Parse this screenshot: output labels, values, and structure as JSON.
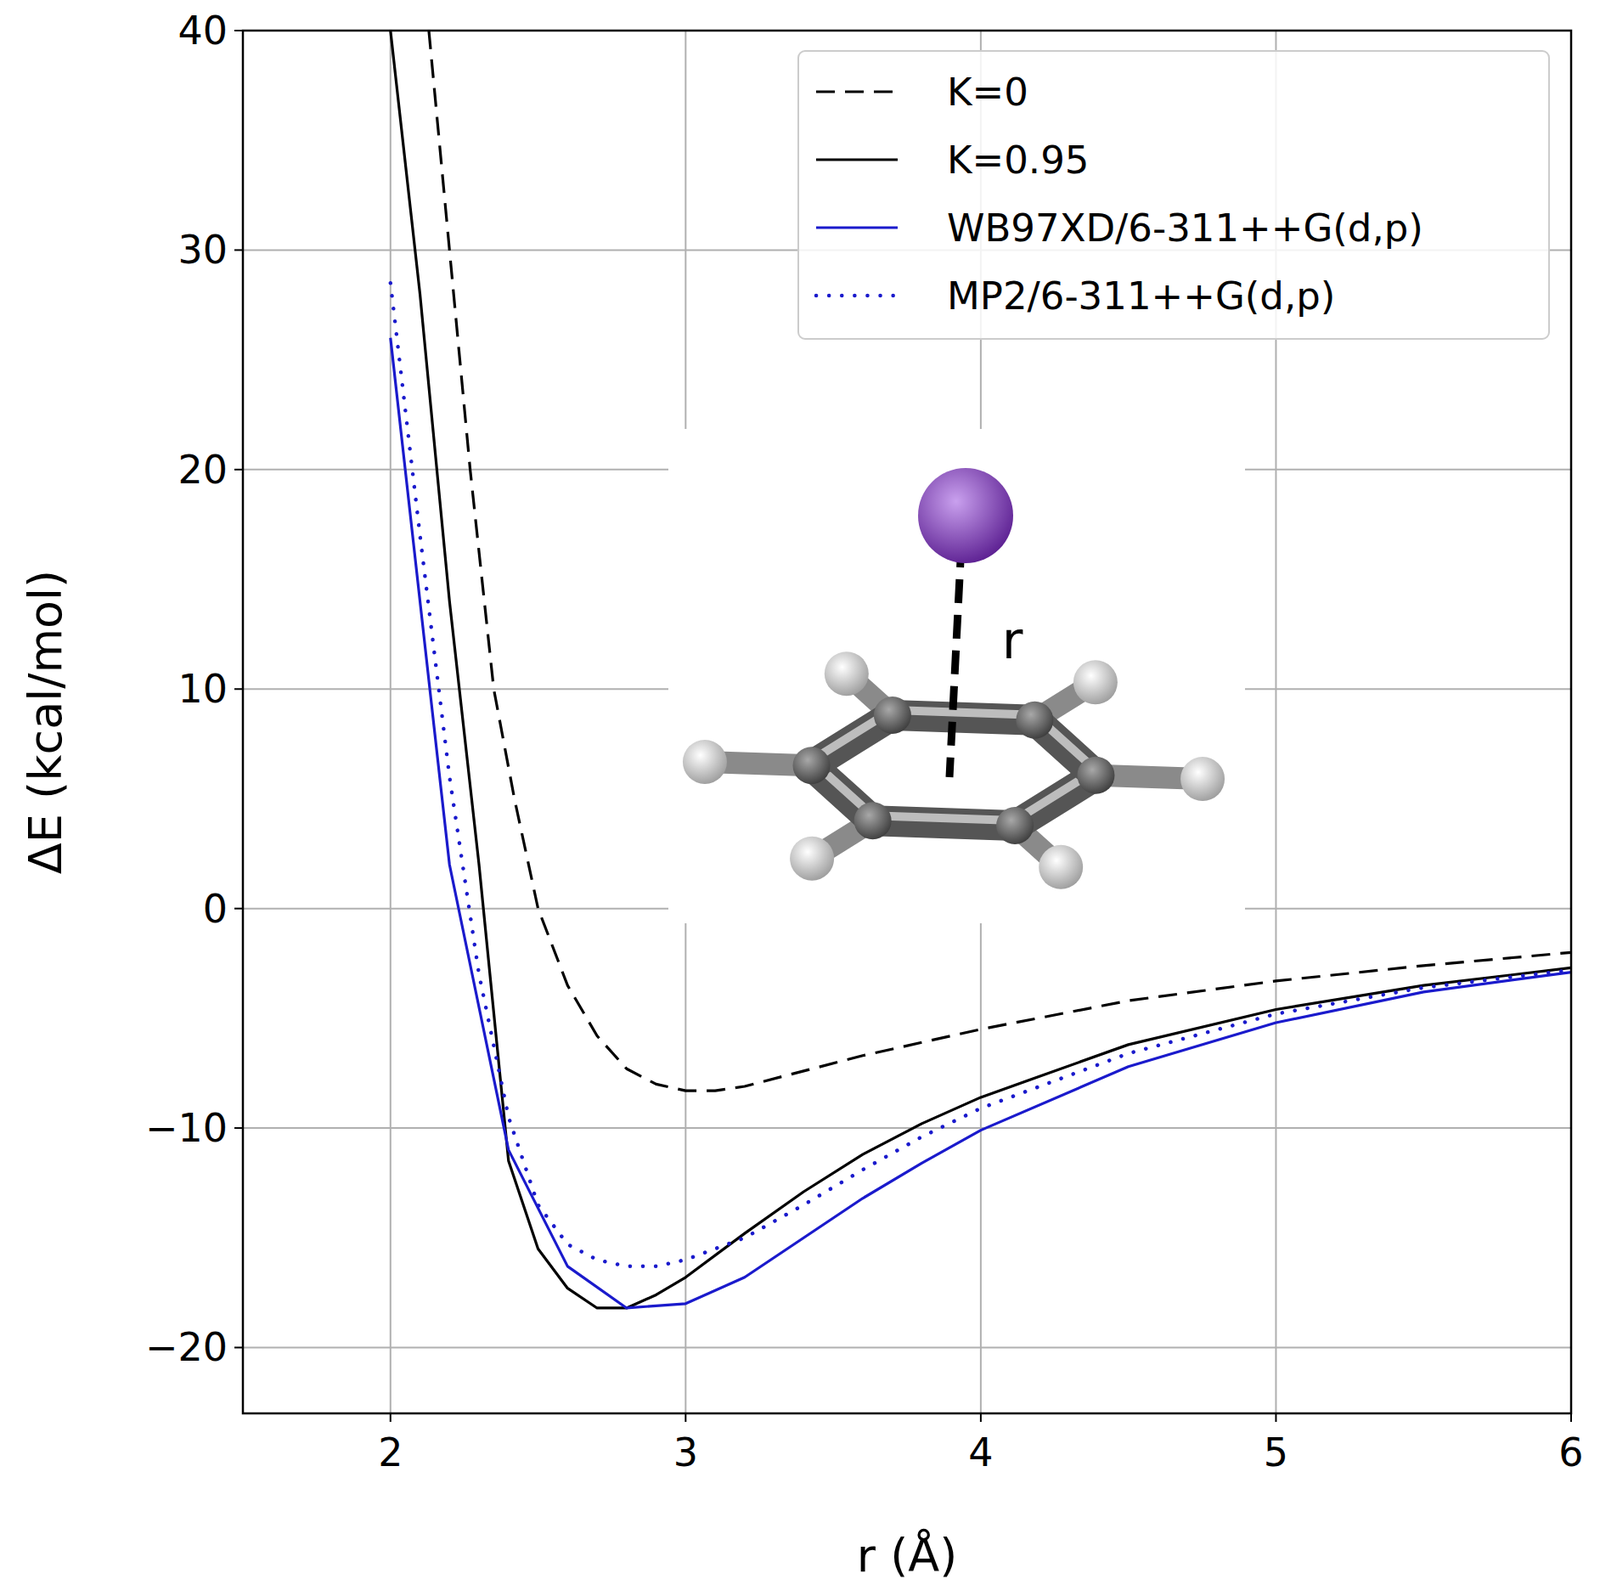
{
  "chart_data": {
    "type": "line",
    "x_label": "r (Å)",
    "y_label": "ΔE (kcal/mol)",
    "xlim": [
      1.5,
      6
    ],
    "ylim": [
      -23,
      40
    ],
    "xticks": [
      2,
      3,
      4,
      5,
      6
    ],
    "yticks": [
      {
        "value": -20,
        "label": "−20"
      },
      {
        "value": -10,
        "label": "−10"
      },
      0,
      10,
      20,
      30,
      40
    ],
    "grid": true,
    "legend": "upper right",
    "annotations": [
      "r"
    ],
    "series": [
      {
        "name": "K=0",
        "color": "#000000",
        "line_style": "dashed",
        "x": [
          2.13,
          2.2,
          2.27,
          2.35,
          2.42,
          2.5,
          2.6,
          2.7,
          2.8,
          2.9,
          3.0,
          3.1,
          3.2,
          3.4,
          3.6,
          3.8,
          4.0,
          4.5,
          5.0,
          5.5,
          6.0
        ],
        "values": [
          40,
          30,
          20,
          10,
          5,
          0,
          -3.5,
          -5.8,
          -7.3,
          -8.0,
          -8.3,
          -8.3,
          -8.1,
          -7.4,
          -6.7,
          -6.1,
          -5.5,
          -4.2,
          -3.3,
          -2.6,
          -2.0
        ]
      },
      {
        "name": "K=0.95",
        "color": "#000000",
        "line_style": "solid",
        "x": [
          2.0,
          2.1,
          2.2,
          2.3,
          2.4,
          2.5,
          2.6,
          2.7,
          2.8,
          2.9,
          3.0,
          3.2,
          3.4,
          3.6,
          3.8,
          4.0,
          4.5,
          5.0,
          5.5,
          6.0
        ],
        "values": [
          40,
          28,
          14,
          2,
          -11.5,
          -15.5,
          -17.3,
          -18.2,
          -18.2,
          -17.6,
          -16.8,
          -14.8,
          -12.9,
          -11.2,
          -9.8,
          -8.6,
          -6.2,
          -4.6,
          -3.5,
          -2.7
        ]
      },
      {
        "name": "WB97XD/6-311++G(d,p)",
        "color": "#1a1acc",
        "line_style": "solid",
        "x": [
          2.0,
          2.2,
          2.4,
          2.6,
          2.8,
          3.0,
          3.2,
          3.4,
          3.6,
          3.8,
          4.0,
          4.5,
          5.0,
          5.5,
          6.0
        ],
        "values": [
          26,
          2,
          -11,
          -16.3,
          -18.2,
          -18,
          -16.8,
          -15,
          -13.2,
          -11.6,
          -10.1,
          -7.2,
          -5.2,
          -3.8,
          -2.9
        ]
      },
      {
        "name": "MP2/6-311++G(d,p)",
        "color": "#1a1acc",
        "line_style": "dotted",
        "x": [
          2.0,
          2.1,
          2.2,
          2.3,
          2.4,
          2.5,
          2.6,
          2.7,
          2.8,
          2.9,
          3.0,
          3.2,
          3.4,
          3.6,
          3.8,
          4.0,
          4.5,
          5.0,
          5.5,
          6.0
        ],
        "values": [
          28.5,
          17,
          6,
          -3,
          -9.5,
          -13.5,
          -15.3,
          -16,
          -16.3,
          -16.3,
          -16,
          -15,
          -13.5,
          -11.9,
          -10.4,
          -9.1,
          -6.6,
          -4.8,
          -3.6,
          -2.8
        ]
      }
    ]
  }
}
